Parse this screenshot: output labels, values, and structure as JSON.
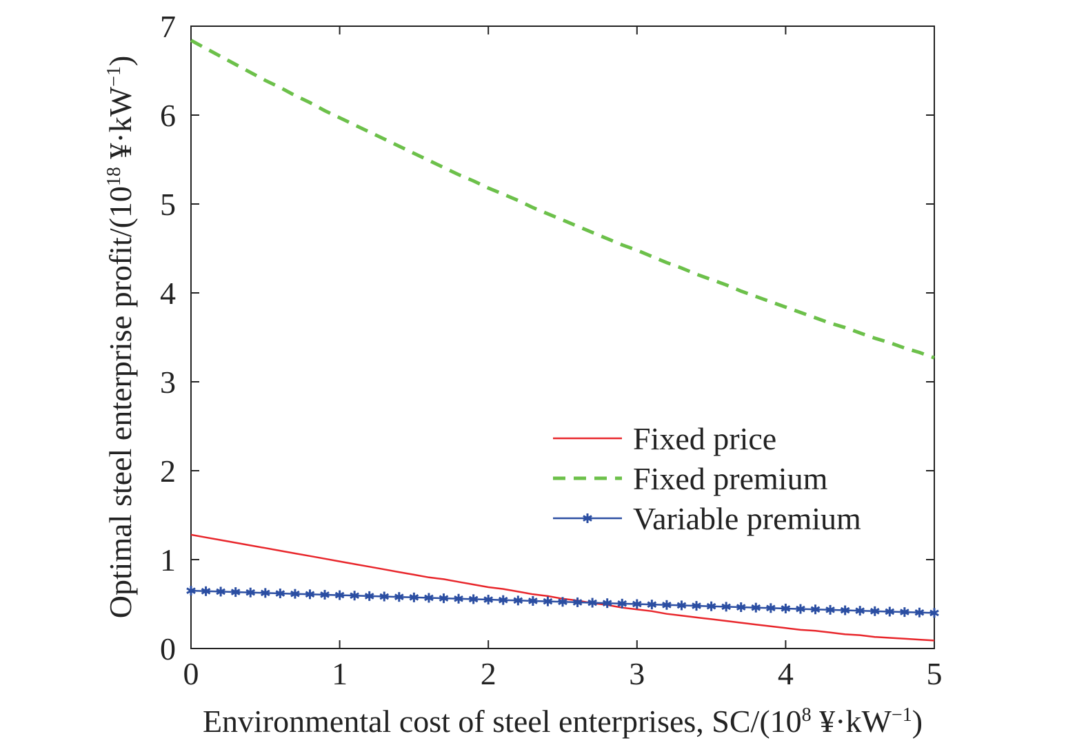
{
  "chart_data": {
    "type": "line",
    "x": [
      0,
      0.1,
      0.2,
      0.3,
      0.4,
      0.5,
      0.6,
      0.7,
      0.8,
      0.9,
      1.0,
      1.1,
      1.2,
      1.3,
      1.4,
      1.5,
      1.6,
      1.7,
      1.8,
      1.9,
      2.0,
      2.1,
      2.2,
      2.3,
      2.4,
      2.5,
      2.6,
      2.7,
      2.8,
      2.9,
      3.0,
      3.1,
      3.2,
      3.3,
      3.4,
      3.5,
      3.6,
      3.7,
      3.8,
      3.9,
      4.0,
      4.1,
      4.2,
      4.3,
      4.4,
      4.5,
      4.6,
      4.7,
      4.8,
      4.9,
      5.0
    ],
    "series": [
      {
        "name": "Fixed price",
        "color": "#e8262b",
        "style": "solid",
        "values": [
          1.28,
          1.25,
          1.22,
          1.19,
          1.16,
          1.13,
          1.1,
          1.07,
          1.04,
          1.01,
          0.98,
          0.95,
          0.92,
          0.89,
          0.86,
          0.83,
          0.8,
          0.78,
          0.75,
          0.72,
          0.69,
          0.67,
          0.64,
          0.61,
          0.59,
          0.56,
          0.54,
          0.51,
          0.49,
          0.46,
          0.44,
          0.42,
          0.39,
          0.37,
          0.35,
          0.33,
          0.31,
          0.29,
          0.27,
          0.25,
          0.23,
          0.21,
          0.2,
          0.18,
          0.16,
          0.15,
          0.13,
          0.12,
          0.11,
          0.1,
          0.09
        ]
      },
      {
        "name": "Fixed premium",
        "color": "#6cc04a",
        "style": "dashed",
        "values": [
          6.84,
          6.75,
          6.66,
          6.57,
          6.48,
          6.39,
          6.31,
          6.22,
          6.14,
          6.05,
          5.97,
          5.89,
          5.81,
          5.73,
          5.65,
          5.57,
          5.49,
          5.41,
          5.33,
          5.26,
          5.18,
          5.11,
          5.04,
          4.96,
          4.89,
          4.82,
          4.75,
          4.68,
          4.61,
          4.54,
          4.48,
          4.41,
          4.34,
          4.28,
          4.21,
          4.15,
          4.09,
          4.02,
          3.96,
          3.9,
          3.84,
          3.78,
          3.72,
          3.66,
          3.61,
          3.55,
          3.49,
          3.44,
          3.38,
          3.33,
          3.27
        ]
      },
      {
        "name": "Variable premium",
        "color": "#2b4ea2",
        "style": "solid-star",
        "values": [
          0.65,
          0.645,
          0.64,
          0.635,
          0.63,
          0.625,
          0.62,
          0.615,
          0.61,
          0.605,
          0.6,
          0.595,
          0.59,
          0.585,
          0.58,
          0.575,
          0.57,
          0.565,
          0.56,
          0.555,
          0.55,
          0.545,
          0.54,
          0.535,
          0.53,
          0.525,
          0.52,
          0.515,
          0.51,
          0.505,
          0.5,
          0.495,
          0.49,
          0.485,
          0.48,
          0.475,
          0.47,
          0.465,
          0.46,
          0.455,
          0.45,
          0.445,
          0.44,
          0.435,
          0.43,
          0.425,
          0.42,
          0.415,
          0.41,
          0.405,
          0.4
        ]
      }
    ],
    "xlim": [
      0,
      5
    ],
    "ylim": [
      0,
      7
    ],
    "xticks": [
      "0",
      "1",
      "2",
      "3",
      "4",
      "5"
    ],
    "yticks": [
      "0",
      "1",
      "2",
      "3",
      "4",
      "5",
      "6",
      "7"
    ],
    "xlabel": {
      "pre": "Environmental cost of steel enterprises, SC/(10",
      "sup1": "8",
      "mid": " ¥·kW",
      "sup2": "−1",
      "post": ")"
    },
    "ylabel": {
      "pre": "Optimal steel enterprise profit/(10",
      "sup1": "18",
      "mid": " ¥·kW",
      "sup2": "−1",
      "post": ")"
    },
    "legend_position": "right, middle",
    "grid": false
  }
}
